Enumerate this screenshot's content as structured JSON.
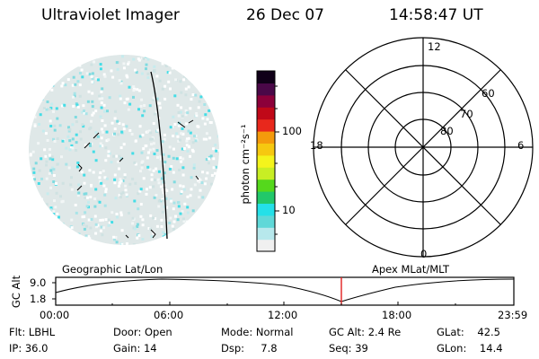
{
  "header": {
    "instrument": "Ultraviolet Imager",
    "date": "26 Dec 07",
    "time": "14:58:47 UT"
  },
  "colorbar": {
    "label": "photon cm⁻²s⁻¹",
    "ticks": [
      "100",
      "10"
    ],
    "colors": [
      "#f0f0f0",
      "#b7e8ec",
      "#5fd8d8",
      "#24e0e8",
      "#22c86a",
      "#55d81c",
      "#c8ee24",
      "#f4f41c",
      "#f6c810",
      "#f49a0c",
      "#e8281c",
      "#c00818",
      "#8c003a",
      "#4a0848",
      "#100018"
    ]
  },
  "polar_plot": {
    "hour_labels": [
      "12",
      "18",
      "6",
      "0"
    ],
    "lat_labels": [
      "60",
      "70",
      "80"
    ]
  },
  "timeline": {
    "left_title": "Geographic Lat/Lon",
    "right_title": "Apex MLat/MLT",
    "axis_title": "GC Alt",
    "y_ticks": [
      "9.0",
      "1.8"
    ],
    "x_ticks": [
      "00:00",
      "06:00",
      "12:00",
      "18:00",
      "23:59"
    ],
    "marker_time": "14:58",
    "marker_color": "#e02020"
  },
  "info": {
    "flt": "Flt: LBHL",
    "ip": "IP: 36.0",
    "door": "Door: Open",
    "gain": "Gain: 14",
    "mode": "Mode: Normal",
    "dsp": "Dsp:     7.8",
    "gcalt": "GC Alt: 2.4 Re",
    "seq": "Seq: 39",
    "glat": "GLat:    42.5",
    "glon": "GLon:    14.4"
  }
}
